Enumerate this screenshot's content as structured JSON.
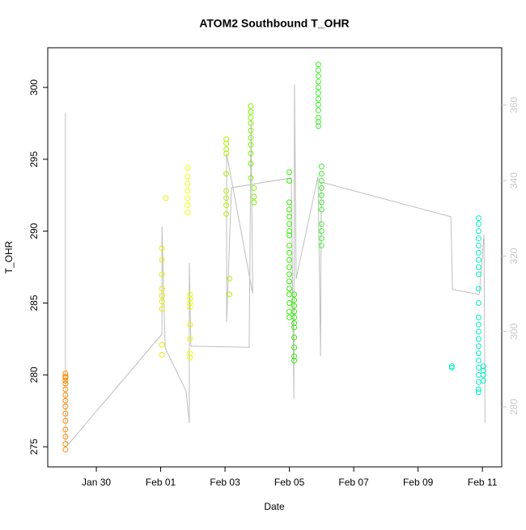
{
  "chart_data": {
    "type": "scatter",
    "title": "ATOM2 Southbound T_OHR",
    "xlabel": "Date",
    "ylabel": "T_OHR",
    "xlim": [
      -1.51,
      12.6
    ],
    "xticks": [
      {
        "value": 0,
        "label": "Jan 30"
      },
      {
        "value": 2,
        "label": "Feb 01"
      },
      {
        "value": 4,
        "label": "Feb 03"
      },
      {
        "value": 6,
        "label": "Feb 05"
      },
      {
        "value": 8,
        "label": "Feb 07"
      },
      {
        "value": 10,
        "label": "Feb 09"
      },
      {
        "value": 12,
        "label": "Feb 11"
      }
    ],
    "ylim": [
      273.6,
      302.76
    ],
    "yticks": [
      275,
      280,
      285,
      290,
      295,
      300
    ],
    "y2lim": [
      264.1,
      375.2
    ],
    "y2ticks": [
      280,
      300,
      320,
      340,
      360
    ],
    "y2color": "#c8c8c8",
    "series": [
      {
        "color": "#ff8c00",
        "x": [
          -0.96,
          -0.96,
          -0.96,
          -0.96,
          -0.96,
          -0.96,
          -0.96,
          -0.96,
          -0.96,
          -0.96,
          -0.96,
          -0.96,
          -0.96,
          -0.96,
          -0.96
        ],
        "values": [
          280.1,
          279.9,
          279.8,
          279.6,
          279.4,
          279.0,
          278.6,
          278.2,
          277.8,
          277.3,
          276.8,
          276.2,
          275.7,
          275.2,
          274.8
        ]
      },
      {
        "color": "#e6f000",
        "x": [
          2.04,
          2.04,
          2.04,
          2.04,
          2.04,
          2.04,
          2.04,
          2.04,
          2.04,
          2.16
        ],
        "values": [
          285.1,
          281.4,
          282.1,
          286.0,
          287.0,
          288.0,
          288.8,
          285.5,
          284.6,
          292.3
        ]
      },
      {
        "color": "#eaff00",
        "x": [
          2.84,
          2.84,
          2.84,
          2.84,
          2.84,
          2.84,
          2.84,
          2.91,
          2.91,
          2.91,
          2.91,
          2.91,
          2.91,
          2.91,
          2.91
        ],
        "values": [
          294.4,
          293.8,
          293.3,
          292.8,
          292.3,
          291.8,
          291.3,
          285.6,
          285.3,
          285.0,
          284.7,
          283.5,
          282.5,
          281.5,
          281.2
        ]
      },
      {
        "color": "#b0f000",
        "x": [
          4.04,
          4.04,
          4.04,
          4.04,
          4.04,
          4.04,
          4.04,
          4.04,
          4.04,
          4.14,
          4.14
        ],
        "values": [
          296.4,
          296.1,
          295.7,
          295.4,
          294.0,
          292.8,
          292.3,
          291.8,
          291.2,
          286.7,
          285.6
        ]
      },
      {
        "color": "#80f000",
        "x": [
          4.8,
          4.8,
          4.8,
          4.8,
          4.8,
          4.8,
          4.8,
          4.8,
          4.8,
          4.8,
          4.9,
          4.9,
          4.9
        ],
        "values": [
          298.7,
          298.3,
          297.9,
          297.5,
          297.0,
          296.5,
          296.0,
          295.4,
          294.7,
          293.7,
          293.0,
          292.4,
          292.0
        ]
      },
      {
        "color": "#30f000",
        "x": [
          6.0,
          6.0,
          6.0,
          6.0,
          6.0,
          6.0,
          6.0,
          6.0,
          6.0,
          6.0,
          6.0,
          6.0,
          6.0,
          6.0,
          6.0,
          6.0,
          6.0,
          6.0,
          6.0,
          6.15,
          6.15,
          6.15,
          6.15,
          6.15,
          6.15,
          6.15,
          6.15,
          6.15,
          6.15,
          6.15
        ],
        "values": [
          294.1,
          293.5,
          292.0,
          291.5,
          291.0,
          290.5,
          290.0,
          289.7,
          289.0,
          288.5,
          288.0,
          287.5,
          287.0,
          286.5,
          286.0,
          285.6,
          285.0,
          284.4,
          284.0,
          285.6,
          285.2,
          284.8,
          284.4,
          284.0,
          283.6,
          283.3,
          282.6,
          281.9,
          281.3,
          281.0
        ]
      },
      {
        "color": "#40f030",
        "x": [
          6.9,
          6.9,
          6.9,
          6.9,
          6.9,
          6.9,
          6.9,
          6.9,
          6.9,
          6.9,
          6.9,
          6.9,
          7.0,
          7.0,
          7.0,
          7.0,
          7.0,
          7.0,
          7.0,
          7.0,
          7.0,
          7.0,
          7.0
        ],
        "values": [
          301.6,
          301.2,
          300.8,
          300.4,
          300.0,
          299.6,
          299.2,
          298.8,
          298.4,
          297.9,
          297.6,
          297.3,
          294.5,
          294.0,
          293.5,
          293.0,
          292.5,
          292.0,
          291.5,
          290.5,
          290.0,
          289.5,
          289.0
        ]
      },
      {
        "color": "#00f0c0",
        "x": [
          11.05,
          11.05,
          11.88,
          11.88,
          11.88,
          11.88,
          11.88,
          11.88,
          11.88,
          11.88,
          11.88,
          11.88,
          11.88,
          11.88,
          11.88,
          11.88,
          11.88,
          11.88,
          11.88,
          11.88,
          11.88,
          11.88,
          11.88,
          11.88,
          11.88,
          12.03,
          12.03,
          12.03,
          12.03
        ],
        "values": [
          280.5,
          280.6,
          290.9,
          290.5,
          290.0,
          289.5,
          289.0,
          288.5,
          288.0,
          287.5,
          287.0,
          286.0,
          285.0,
          284.0,
          283.5,
          283.0,
          282.5,
          282.0,
          281.5,
          281.0,
          280.5,
          280.0,
          279.5,
          279.0,
          278.8,
          280.6,
          280.3,
          280.0,
          279.6
        ]
      },
      {
        "color": "#bebebe",
        "axis": "y2",
        "x": [
          -0.96,
          -0.96,
          -0.86,
          2.04,
          2.04,
          2.14,
          2.79,
          2.89,
          2.89,
          2.94,
          4.75,
          4.81,
          4.86,
          4.05,
          4.05,
          4.2,
          6.06,
          6.14,
          6.16,
          6.21,
          6.89,
          6.97,
          6.99,
          11.02,
          11.07,
          11.9,
          12.05,
          12.08
        ],
        "values": [
          357.9,
          270.9,
          270.2,
          299.3,
          327.8,
          295.6,
          284.2,
          275.7,
          318.2,
          296.1,
          295.8,
          355.7,
          310.0,
          347.1,
          302.5,
          338.1,
          340.7,
          282.1,
          365.4,
          313.9,
          341.1,
          293.5,
          339.6,
          330.4,
          311.1,
          309.8,
          325.7,
          275.7
        ]
      }
    ]
  }
}
